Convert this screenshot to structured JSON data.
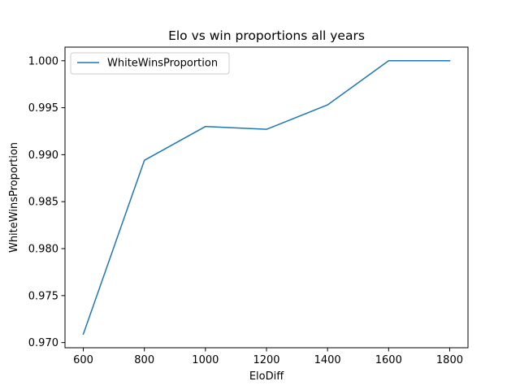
{
  "chart_data": {
    "type": "line",
    "title": "Elo vs win proportions all years",
    "xlabel": "EloDiff",
    "ylabel": "WhiteWinsProportion",
    "x": [
      600,
      800,
      1000,
      1200,
      1400,
      1600,
      1800
    ],
    "series": [
      {
        "name": "WhiteWinsProportion",
        "values": [
          0.9709,
          0.9894,
          0.993,
          0.9927,
          0.9953,
          1.0,
          1.0
        ],
        "color": "#1f77b4"
      }
    ],
    "xlim": [
      540,
      1860
    ],
    "ylim": [
      0.96945,
      1.00145
    ],
    "xticks": [
      600,
      800,
      1000,
      1200,
      1400,
      1600,
      1800
    ],
    "xtick_labels": [
      "600",
      "800",
      "1000",
      "1200",
      "1400",
      "1600",
      "1800"
    ],
    "yticks": [
      0.97,
      0.975,
      0.98,
      0.985,
      0.99,
      0.995,
      1.0
    ],
    "ytick_labels": [
      "0.970",
      "0.975",
      "0.980",
      "0.985",
      "0.990",
      "0.995",
      "1.000"
    ],
    "grid": false,
    "legend_position": "upper-left"
  }
}
